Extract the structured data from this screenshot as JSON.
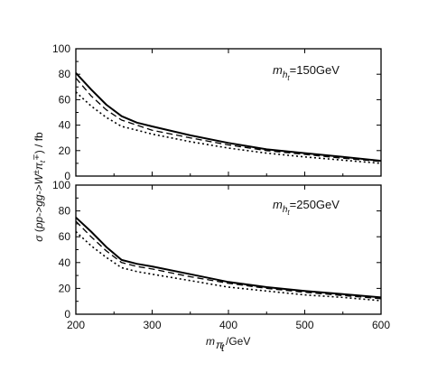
{
  "chart_data": {
    "type": "line",
    "shared_x_label": "m_{π_t}/GeV",
    "shared_y_label": "σ (pp->gg->W^± π_t^∓) / fb",
    "xlim": [
      200,
      600
    ],
    "x_ticks": [
      200,
      300,
      400,
      500,
      600
    ],
    "panels": [
      {
        "annotation": "m_{h_t}=150GeV",
        "ylim": [
          0,
          100
        ],
        "y_ticks": [
          0,
          20,
          40,
          60,
          80,
          100
        ],
        "x": [
          200,
          220,
          240,
          260,
          280,
          300,
          350,
          400,
          450,
          500,
          550,
          600
        ],
        "series": [
          {
            "values": [
              81,
              68,
              56,
              47,
              42,
              39,
              32,
              26,
              21,
              18,
              15,
              12
            ],
            "style": "solid",
            "width": 2
          },
          {
            "values": [
              77,
              63,
              52,
              44,
              40,
              36,
              30,
              24.5,
              20,
              17,
              14,
              11.5
            ],
            "style": "dashed",
            "width": 1.3
          },
          {
            "values": [
              66,
              55,
              46,
              39,
              36,
              33,
              27,
              22,
              18,
              15,
              12.5,
              10
            ],
            "style": "dotted",
            "width": 1.6
          }
        ]
      },
      {
        "annotation": "m_{h_t}=250GeV",
        "ylim": [
          0,
          100
        ],
        "y_ticks": [
          0,
          20,
          40,
          60,
          80,
          100
        ],
        "x": [
          200,
          220,
          240,
          260,
          280,
          300,
          350,
          400,
          450,
          500,
          550,
          600
        ],
        "series": [
          {
            "values": [
              75,
              64,
              52,
              42,
              39,
              37,
              31,
              25,
              21,
              18,
              15.5,
              13
            ],
            "style": "solid",
            "width": 2
          },
          {
            "values": [
              72,
              60,
              49,
              40,
              37,
              35,
              29,
              24,
              20,
              17,
              14.5,
              12
            ],
            "style": "dashed",
            "width": 1.3
          },
          {
            "values": [
              64,
              53,
              44,
              36,
              33,
              31,
              26,
              21,
              18,
              15,
              13,
              10.5
            ],
            "style": "dotted",
            "width": 1.6
          }
        ]
      }
    ]
  }
}
